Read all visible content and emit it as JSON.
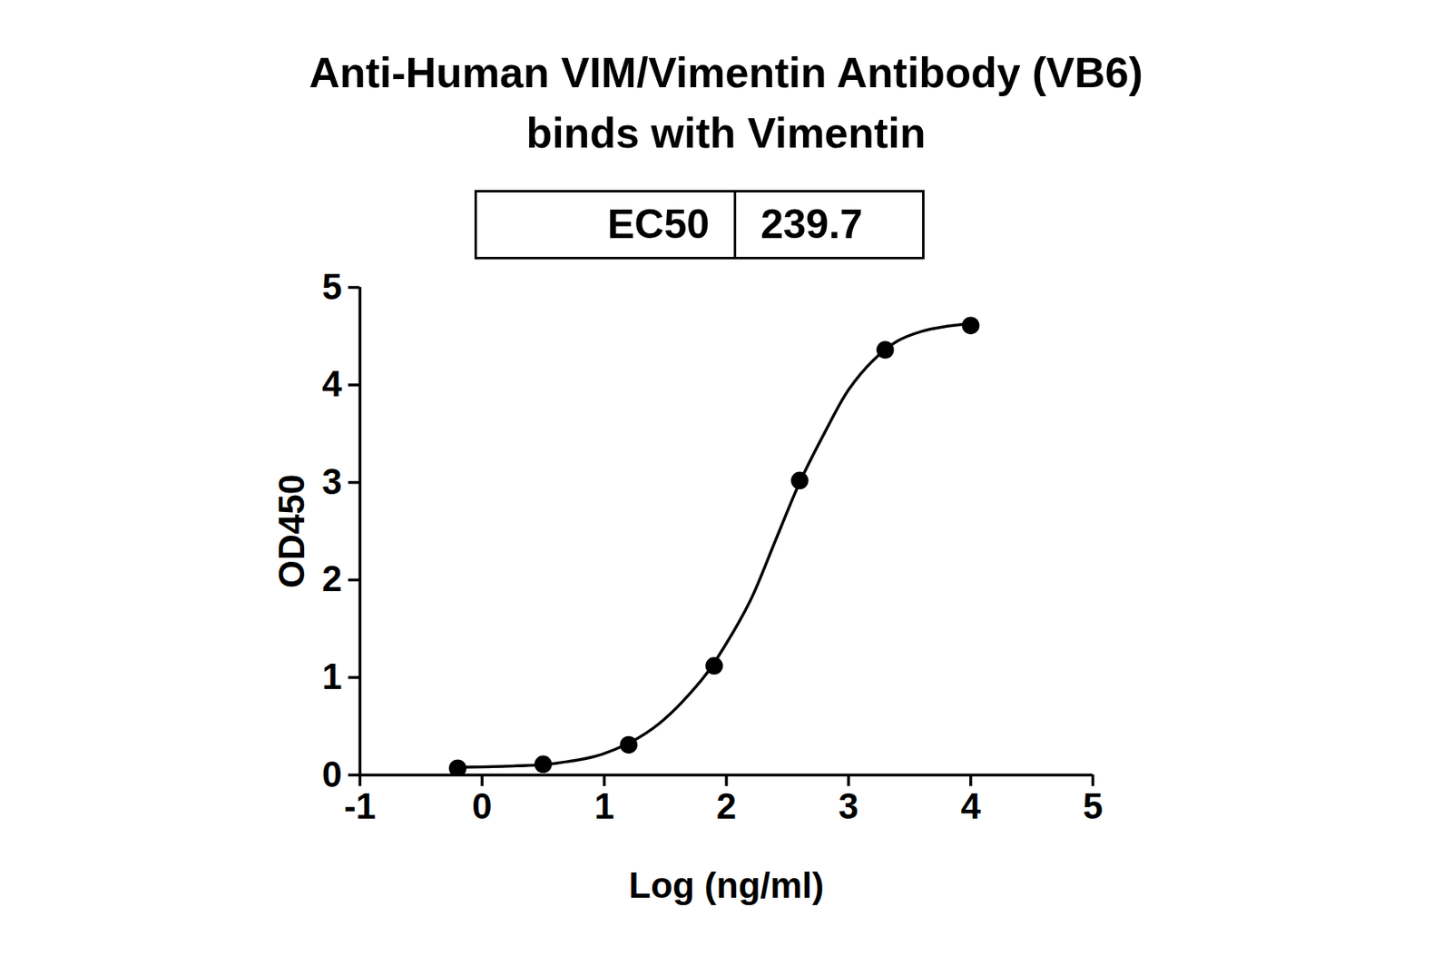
{
  "chart_data": {
    "type": "scatter",
    "title": "Anti-Human VIM/Vimentin Antibody (VB6)",
    "subtitle": "binds with Vimentin",
    "annotation": {
      "label": "EC50",
      "value": 239.7
    },
    "x_label": "Log (ng/ml)",
    "y_label": "OD450",
    "xlim": [
      -1,
      5
    ],
    "xticks": [
      -1,
      0,
      1,
      2,
      3,
      4,
      5
    ],
    "ylim": [
      0,
      5
    ],
    "yticks": [
      0,
      1,
      2,
      3,
      4,
      5
    ],
    "grid": false,
    "series": [
      {
        "type": "scatter",
        "marker": "circle",
        "color": "#000000",
        "x": [
          -0.2,
          0.5,
          1.2,
          1.9,
          2.6,
          3.3,
          4.0
        ],
        "values": [
          0.07,
          0.11,
          0.31,
          1.12,
          3.02,
          4.36,
          4.61
        ]
      },
      {
        "type": "line",
        "line_style": "solid",
        "color": "#000000",
        "x": [
          -0.2,
          0.2,
          0.6,
          1.0,
          1.4,
          1.8,
          2.0,
          2.2,
          2.4,
          2.6,
          2.8,
          3.0,
          3.2,
          3.4,
          3.6,
          3.8,
          4.0
        ],
        "values": [
          0.08,
          0.09,
          0.12,
          0.22,
          0.48,
          0.98,
          1.35,
          1.8,
          2.4,
          3.0,
          3.5,
          3.95,
          4.25,
          4.45,
          4.55,
          4.6,
          4.63
        ]
      }
    ]
  }
}
